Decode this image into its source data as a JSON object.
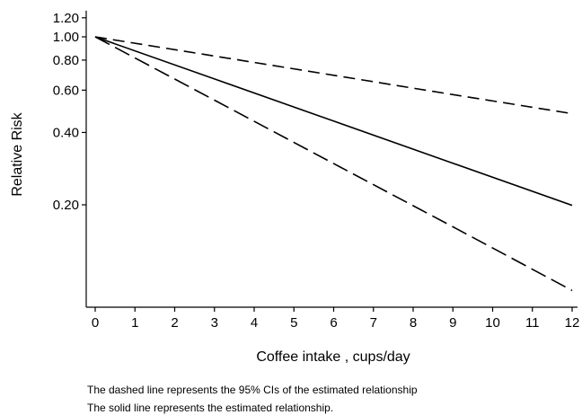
{
  "chart_data": {
    "type": "line",
    "title": "",
    "xlabel": "Coffee intake , cups/day",
    "ylabel": "Relative Risk",
    "xlim": [
      0,
      12
    ],
    "ylim": [
      0.1,
      1.2
    ],
    "y_scale": "log",
    "x_ticks": [
      0,
      1,
      2,
      3,
      4,
      5,
      6,
      7,
      8,
      9,
      10,
      11,
      12
    ],
    "y_ticks": [
      0.2,
      0.4,
      0.6,
      0.8,
      1.0,
      1.2
    ],
    "y_tick_labels": [
      "0.20",
      "0.40",
      "0.60",
      "0.80",
      "1.00",
      "1.20"
    ],
    "grid": false,
    "legend": "none",
    "series": [
      {
        "style": "dashed",
        "role": "upper 95% CI",
        "x": [
          0,
          3,
          6,
          9,
          12
        ],
        "y": [
          1.0,
          0.832,
          0.692,
          0.575,
          0.479
        ]
      },
      {
        "style": "solid",
        "role": "estimate",
        "x": [
          0,
          3,
          6,
          9,
          12
        ],
        "y": [
          1.0,
          0.668,
          0.446,
          0.298,
          0.199
        ]
      },
      {
        "style": "dashed",
        "role": "lower 95% CI",
        "x": [
          0,
          3,
          6,
          9,
          12
        ],
        "y": [
          1.0,
          0.545,
          0.297,
          0.162,
          0.088
        ]
      }
    ]
  },
  "notes": [
    "The dashed line represents the 95% CIs of the estimated relationship",
    "The solid line represents the estimated relationship."
  ]
}
